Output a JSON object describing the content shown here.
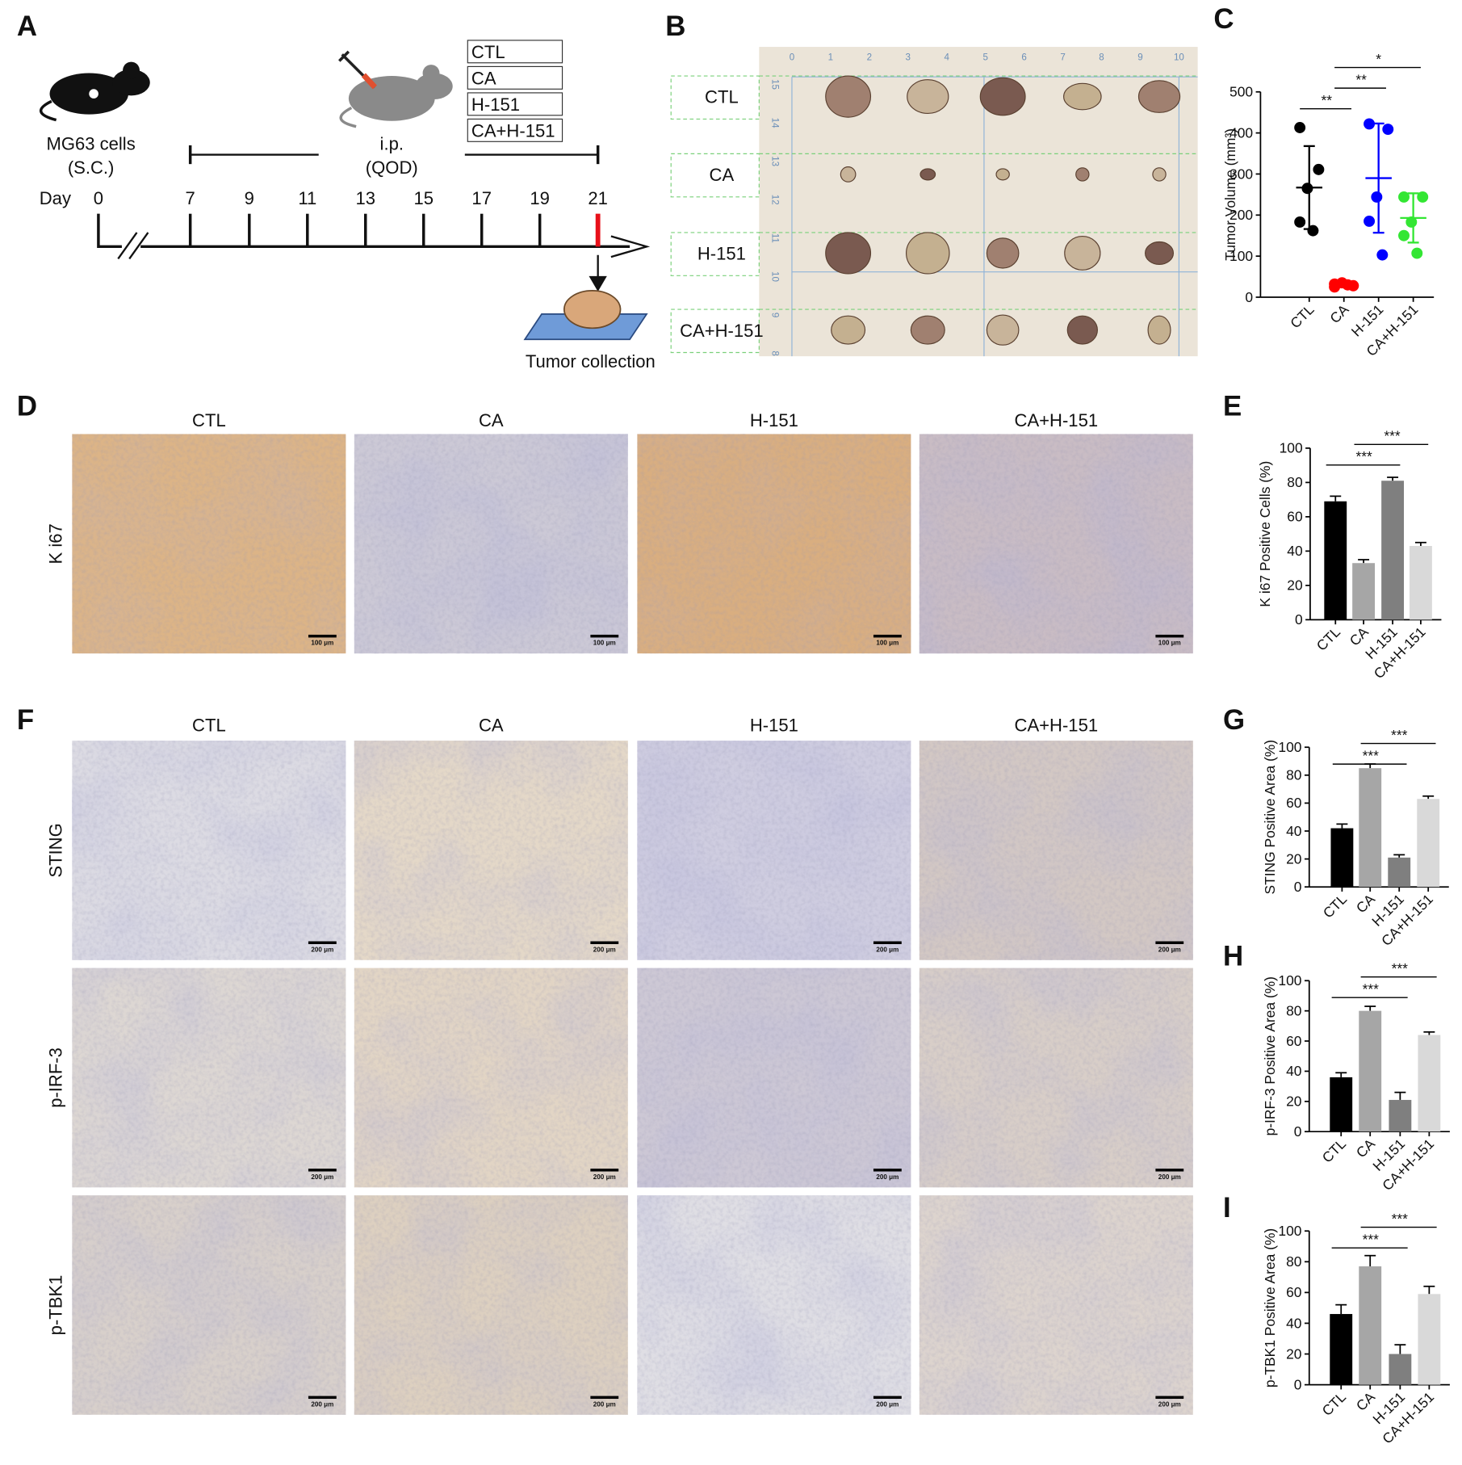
{
  "panel_labels": {
    "A": "A",
    "B": "B",
    "D": "D",
    "F": "F"
  },
  "timeline": {
    "cells": [
      "MG63 cells",
      "(S.C.)"
    ],
    "injection": [
      "i.p.",
      "(QOD)"
    ],
    "groups": [
      "CTL",
      "CA",
      "H-151",
      "CA+H-151"
    ],
    "day_label": "Day",
    "days": [
      0,
      7,
      9,
      11,
      13,
      15,
      17,
      19,
      21
    ],
    "collection": "Tumor collection"
  },
  "photo": {
    "groups": [
      "CTL",
      "CA",
      "H-151",
      "CA+H-151"
    ],
    "ruler_top": [
      0,
      1,
      2,
      3,
      4,
      5,
      6,
      7,
      8,
      9,
      10
    ],
    "ruler_left": [
      15,
      14,
      13,
      12,
      11,
      10,
      9,
      8
    ]
  },
  "ihc": {
    "columns": [
      "CTL",
      "CA",
      "H-151",
      "CA+H-151"
    ],
    "ki67_row": "K i67",
    "ki67_scale": "100 μm",
    "rows": [
      "STING",
      "p-IRF-3",
      "p-TBK1"
    ],
    "scale": "200 μm"
  },
  "chart_data": [
    {
      "type": "dotplot",
      "panel": "C",
      "ylabel": "Tumor Volume (mm³)",
      "categories": [
        "CTL",
        "CA",
        "H-151",
        "CA+H-151"
      ],
      "colors": [
        "#000000",
        "#ff0000",
        "#0000ff",
        "#33e633"
      ],
      "points": [
        [
          413,
          311,
          265,
          183,
          162
        ],
        [
          32,
          28,
          35,
          25,
          30
        ],
        [
          422,
          409,
          244,
          185,
          103
        ],
        [
          244,
          244,
          183,
          150,
          107
        ]
      ],
      "means": [
        267,
        30,
        290,
        193
      ],
      "sd": [
        101,
        4,
        133,
        60
      ],
      "ylim": [
        0,
        500
      ],
      "yticks": [
        0,
        100,
        200,
        300,
        400,
        500
      ],
      "significance": [
        {
          "label": "**",
          "between": [
            "CTL",
            "CA"
          ]
        },
        {
          "label": "**",
          "between": [
            "CA",
            "H-151"
          ]
        },
        {
          "label": "*",
          "between": [
            "CA",
            "CA+H-151"
          ]
        }
      ]
    },
    {
      "type": "bar",
      "panel": "E",
      "ylabel": "K i67 Positive Cells (%)",
      "categories": [
        "CTL",
        "CA",
        "H-151",
        "CA+H-151"
      ],
      "colors": [
        "#000000",
        "#a6a6a6",
        "#7f7f7f",
        "#d9d9d9"
      ],
      "values": [
        69,
        33,
        81,
        43
      ],
      "errors": [
        3,
        2,
        2,
        2
      ],
      "ylim": [
        0,
        100
      ],
      "yticks": [
        0,
        20,
        40,
        60,
        80,
        100
      ],
      "significance": [
        {
          "label": "***",
          "between": [
            "CTL",
            "H-151"
          ]
        },
        {
          "label": "***",
          "between": [
            "CA",
            "CA+H-151"
          ]
        }
      ]
    },
    {
      "type": "bar",
      "panel": "G",
      "ylabel": "STING Positive Area  (%)",
      "categories": [
        "CTL",
        "CA",
        "H-151",
        "CA+H-151"
      ],
      "colors": [
        "#000000",
        "#a6a6a6",
        "#7f7f7f",
        "#d9d9d9"
      ],
      "values": [
        42,
        85,
        21,
        63
      ],
      "errors": [
        3,
        3,
        2,
        2
      ],
      "ylim": [
        0,
        100
      ],
      "yticks": [
        0,
        20,
        40,
        60,
        80,
        100
      ],
      "significance": [
        {
          "label": "***",
          "between": [
            "CTL",
            "H-151"
          ]
        },
        {
          "label": "***",
          "between": [
            "CA",
            "CA+H-151"
          ]
        }
      ]
    },
    {
      "type": "bar",
      "panel": "H",
      "ylabel": "p-IRF-3 Positive Area  (%)",
      "categories": [
        "CTL",
        "CA",
        "H-151",
        "CA+H-151"
      ],
      "colors": [
        "#000000",
        "#a6a6a6",
        "#7f7f7f",
        "#d9d9d9"
      ],
      "values": [
        36,
        80,
        21,
        64
      ],
      "errors": [
        3,
        3,
        5,
        2
      ],
      "ylim": [
        0,
        100
      ],
      "yticks": [
        0,
        20,
        40,
        60,
        80,
        100
      ],
      "significance": [
        {
          "label": "***",
          "between": [
            "CTL",
            "H-151"
          ]
        },
        {
          "label": "***",
          "between": [
            "CA",
            "CA+H-151"
          ]
        }
      ]
    },
    {
      "type": "bar",
      "panel": "I",
      "ylabel": "p-TBK1 Positive Area  (%)",
      "categories": [
        "CTL",
        "CA",
        "H-151",
        "CA+H-151"
      ],
      "colors": [
        "#000000",
        "#a6a6a6",
        "#7f7f7f",
        "#d9d9d9"
      ],
      "values": [
        46,
        77,
        20,
        59
      ],
      "errors": [
        6,
        7,
        6,
        5
      ],
      "ylim": [
        0,
        100
      ],
      "yticks": [
        0,
        20,
        40,
        60,
        80,
        100
      ],
      "significance": [
        {
          "label": "***",
          "between": [
            "CTL",
            "H-151"
          ]
        },
        {
          "label": "***",
          "between": [
            "CA",
            "CA+H-151"
          ]
        }
      ]
    }
  ]
}
